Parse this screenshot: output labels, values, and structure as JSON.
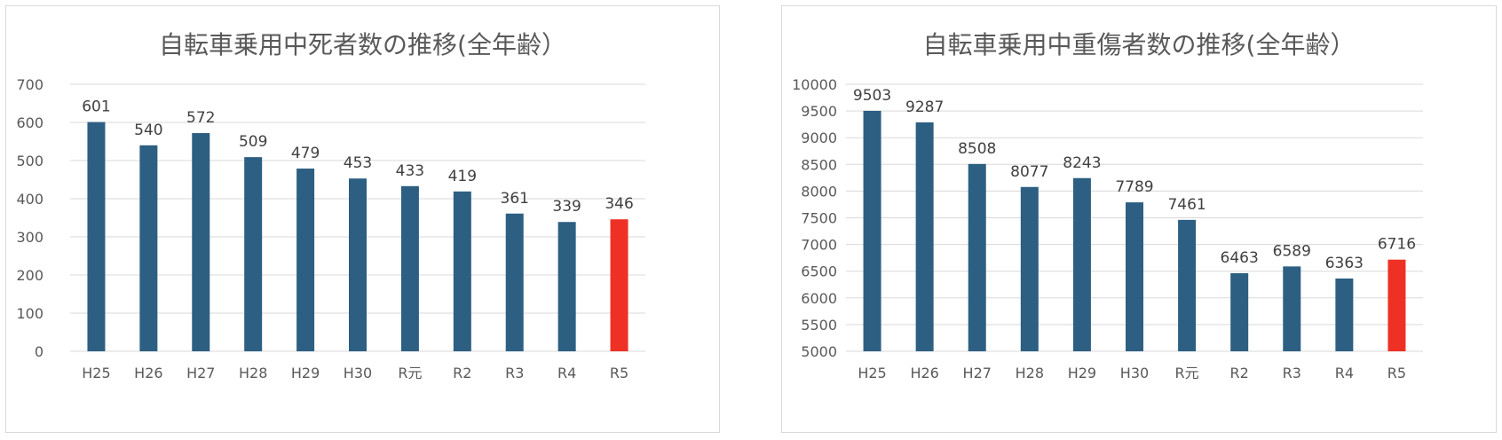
{
  "colors": {
    "bar": "#2c5f82",
    "highlight": "#ee3124",
    "grid": "#d9d9d9",
    "text": "#595959"
  },
  "chart_data": [
    {
      "type": "bar",
      "title": "自転車乗用中死者数の推移(全年齢）",
      "categories": [
        "H25",
        "H26",
        "H27",
        "H28",
        "H29",
        "H30",
        "R元",
        "R2",
        "R3",
        "R4",
        "R5"
      ],
      "values": [
        601,
        540,
        572,
        509,
        479,
        453,
        433,
        419,
        361,
        339,
        346
      ],
      "ylim": [
        0,
        700
      ],
      "yticks": [
        0,
        100,
        200,
        300,
        400,
        500,
        600,
        700
      ],
      "grid": true,
      "data_labels": true,
      "highlight_category": "R5"
    },
    {
      "type": "bar",
      "title": "自転車乗用中重傷者数の推移(全年齢）",
      "categories": [
        "H25",
        "H26",
        "H27",
        "H28",
        "H29",
        "H30",
        "R元",
        "R2",
        "R3",
        "R4",
        "R5"
      ],
      "values": [
        9503,
        9287,
        8508,
        8077,
        8243,
        7789,
        7461,
        6463,
        6589,
        6363,
        6716
      ],
      "ylim": [
        5000,
        10000
      ],
      "yticks": [
        5000,
        5500,
        6000,
        6500,
        7000,
        7500,
        8000,
        8500,
        9000,
        9500,
        10000
      ],
      "grid": true,
      "data_labels": true,
      "highlight_category": "R5"
    }
  ]
}
